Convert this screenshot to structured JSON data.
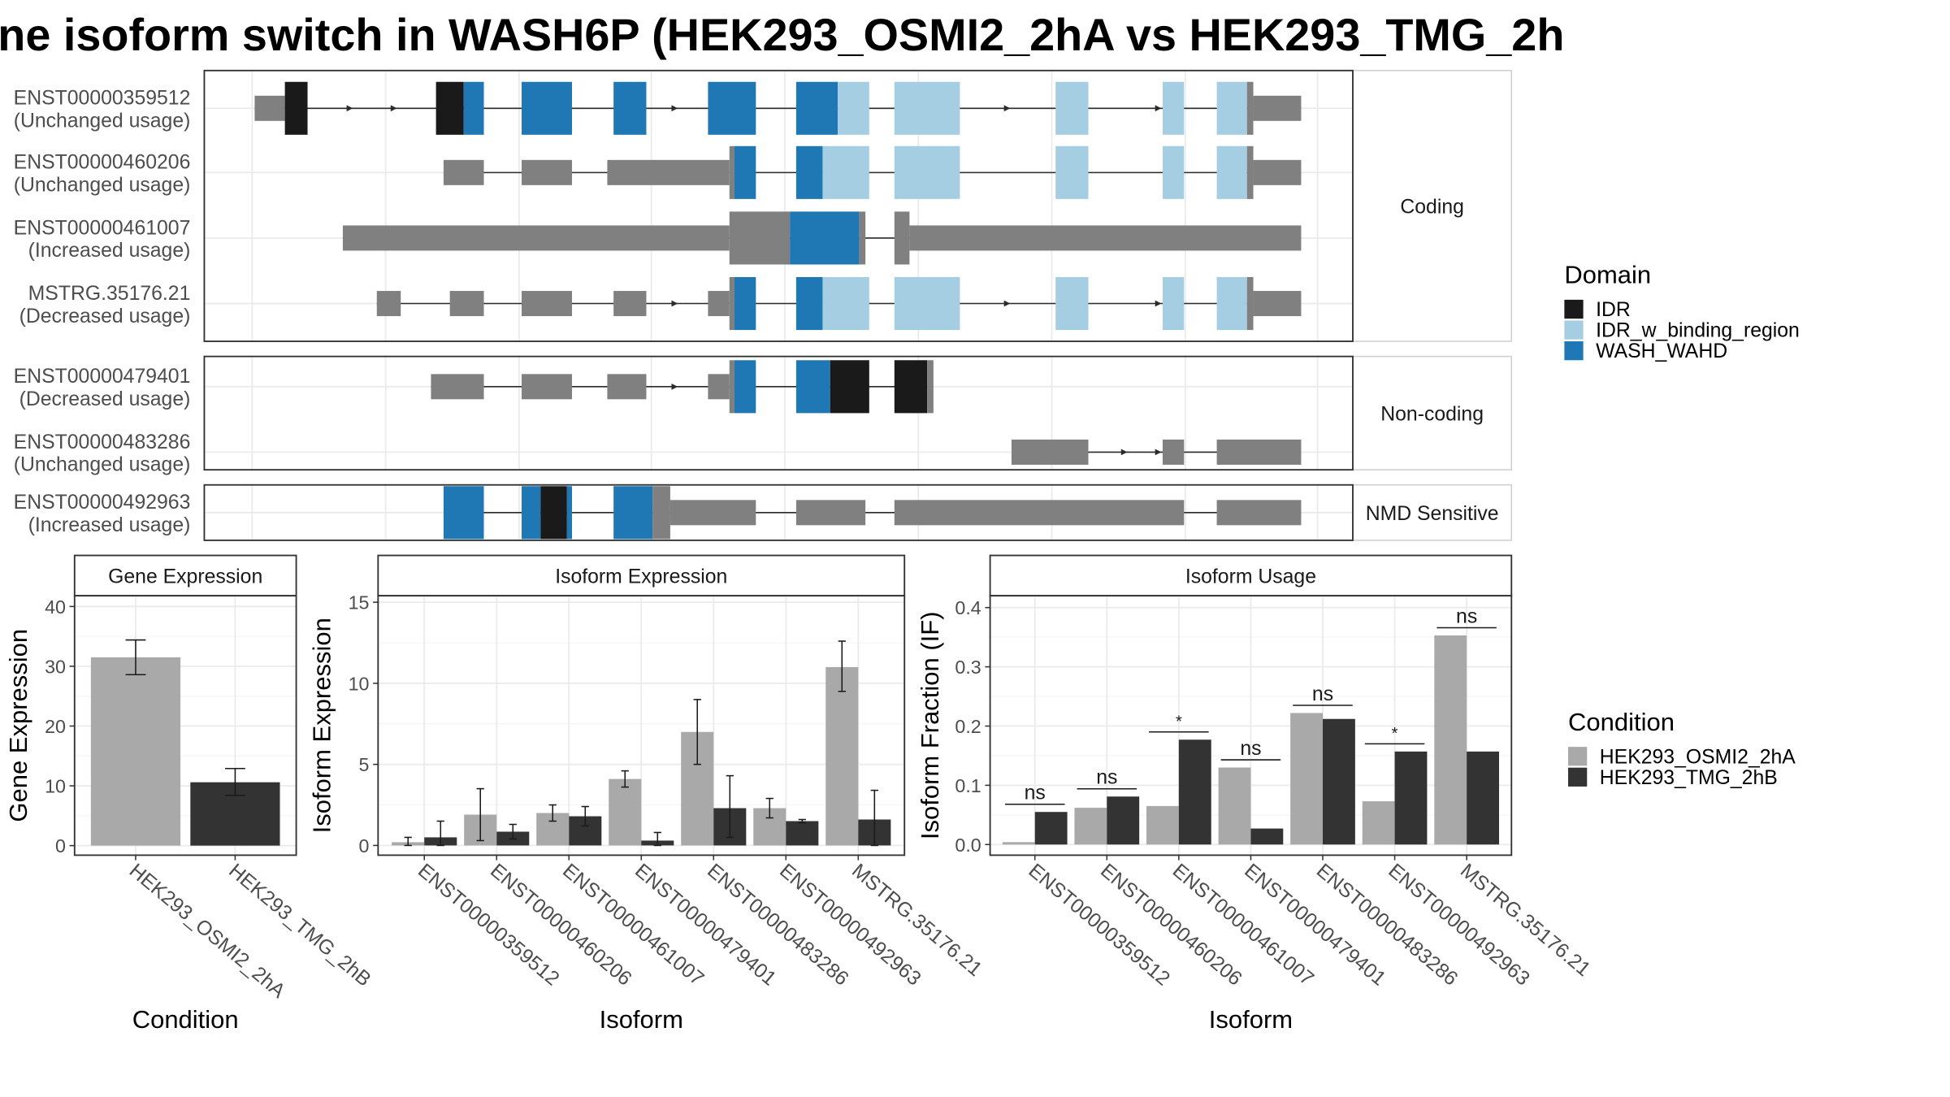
{
  "title": "ne isoform switch in WASH6P (HEK293_OSMI2_2hA vs HEK293_TMG_2h",
  "colors": {
    "IDR": "#1a1a1a",
    "IDR_w_binding_region": "#a6cee3",
    "WASH_WAHD": "#1f78b4",
    "intron": "#7f7f7f",
    "gene": "#808080",
    "cond1": "#a9a9a9",
    "cond2": "#333333"
  },
  "legend_domain": {
    "title": "Domain",
    "items": [
      {
        "label": "IDR",
        "color": "IDR"
      },
      {
        "label": "IDR_w_binding_region",
        "color": "IDR_w_binding_region"
      },
      {
        "label": "WASH_WAHD",
        "color": "WASH_WAHD"
      }
    ]
  },
  "legend_condition": {
    "title": "Condition",
    "items": [
      {
        "label": "HEK293_OSMI2_2hA",
        "color": "cond1"
      },
      {
        "label": "HEK293_TMG_2hB",
        "color": "cond2"
      }
    ]
  },
  "structure": {
    "panels": [
      {
        "label": "Coding",
        "transcripts": [
          {
            "id": "ENST00000359512",
            "usage": "(Unchanged usage)",
            "segments": [
              [
                202,
                226,
                "gene",
                "thin"
              ],
              [
                226,
                244,
                "IDR",
                "thick"
              ],
              [
                346,
                368,
                "IDR",
                "thick"
              ],
              [
                368,
                384,
                "WASH_WAHD",
                "thick"
              ],
              [
                414,
                454,
                "WASH_WAHD",
                "thick"
              ],
              [
                487,
                513,
                "WASH_WAHD",
                "thick"
              ],
              [
                562,
                600,
                "WASH_WAHD",
                "thick"
              ],
              [
                632,
                665,
                "WASH_WAHD",
                "thick"
              ],
              [
                665,
                690,
                "IDR_w_binding_region",
                "thick"
              ],
              [
                710,
                762,
                "IDR_w_binding_region",
                "thick"
              ],
              [
                838,
                864,
                "IDR_w_binding_region",
                "thick"
              ],
              [
                923,
                940,
                "IDR_w_binding_region",
                "thick"
              ],
              [
                966,
                990,
                "IDR_w_binding_region",
                "thick"
              ],
              [
                990,
                995,
                "gene",
                "thick"
              ],
              [
                995,
                1033,
                "gene",
                "thin"
              ]
            ],
            "arrows": [
              278,
              313,
              536,
              800,
              920
            ]
          },
          {
            "id": "ENST00000460206",
            "usage": "(Unchanged usage)",
            "segments": [
              [
                352,
                384,
                "gene",
                "thin"
              ],
              [
                414,
                454,
                "gene",
                "thin"
              ],
              [
                482,
                579,
                "gene",
                "thin"
              ],
              [
                579,
                583,
                "gene",
                "thick"
              ],
              [
                583,
                600,
                "WASH_WAHD",
                "thick"
              ],
              [
                632,
                653,
                "WASH_WAHD",
                "thick"
              ],
              [
                653,
                690,
                "IDR_w_binding_region",
                "thick"
              ],
              [
                710,
                762,
                "IDR_w_binding_region",
                "thick"
              ],
              [
                838,
                864,
                "IDR_w_binding_region",
                "thick"
              ],
              [
                923,
                940,
                "IDR_w_binding_region",
                "thick"
              ],
              [
                966,
                990,
                "IDR_w_binding_region",
                "thick"
              ],
              [
                990,
                995,
                "gene",
                "thick"
              ],
              [
                995,
                1033,
                "gene",
                "thin"
              ]
            ],
            "arrows": []
          },
          {
            "id": "ENST00000461007",
            "usage": "(Increased usage)",
            "segments": [
              [
                272,
                579,
                "gene",
                "thin"
              ],
              [
                579,
                627,
                "gene",
                "thick"
              ],
              [
                627,
                682,
                "WASH_WAHD",
                "thick"
              ],
              [
                682,
                687,
                "gene",
                "thick"
              ],
              [
                710,
                722,
                "gene",
                "thick"
              ],
              [
                722,
                1033,
                "gene",
                "thin"
              ]
            ],
            "arrows": []
          },
          {
            "id": "MSTRG.35176.21",
            "usage": "(Decreased usage)",
            "segments": [
              [
                299,
                318,
                "gene",
                "thin"
              ],
              [
                357,
                384,
                "gene",
                "thin"
              ],
              [
                414,
                454,
                "gene",
                "thin"
              ],
              [
                487,
                513,
                "gene",
                "thin"
              ],
              [
                562,
                579,
                "gene",
                "thin"
              ],
              [
                579,
                583,
                "gene",
                "thick"
              ],
              [
                583,
                600,
                "WASH_WAHD",
                "thick"
              ],
              [
                632,
                653,
                "WASH_WAHD",
                "thick"
              ],
              [
                653,
                690,
                "IDR_w_binding_region",
                "thick"
              ],
              [
                710,
                762,
                "IDR_w_binding_region",
                "thick"
              ],
              [
                838,
                864,
                "IDR_w_binding_region",
                "thick"
              ],
              [
                923,
                940,
                "IDR_w_binding_region",
                "thick"
              ],
              [
                966,
                990,
                "IDR_w_binding_region",
                "thick"
              ],
              [
                990,
                995,
                "gene",
                "thick"
              ],
              [
                995,
                1033,
                "gene",
                "thin"
              ]
            ],
            "arrows": [
              536,
              800,
              920
            ]
          }
        ]
      },
      {
        "label": "Non-coding",
        "transcripts": [
          {
            "id": "ENST00000479401",
            "usage": "(Decreased usage)",
            "segments": [
              [
                342,
                384,
                "gene",
                "thin"
              ],
              [
                414,
                454,
                "gene",
                "thin"
              ],
              [
                482,
                513,
                "gene",
                "thin"
              ],
              [
                562,
                579,
                "gene",
                "thin"
              ],
              [
                579,
                583,
                "gene",
                "thick"
              ],
              [
                583,
                600,
                "WASH_WAHD",
                "thick"
              ],
              [
                632,
                659,
                "WASH_WAHD",
                "thick"
              ],
              [
                659,
                690,
                "IDR",
                "thick"
              ],
              [
                710,
                736,
                "IDR",
                "thick"
              ],
              [
                736,
                741,
                "gene",
                "thick"
              ]
            ],
            "arrows": [
              536
            ]
          },
          {
            "id": "ENST00000483286",
            "usage": "(Unchanged usage)",
            "segments": [
              [
                803,
                864,
                "gene",
                "thin"
              ],
              [
                923,
                940,
                "gene",
                "thin"
              ],
              [
                966,
                1033,
                "gene",
                "thin"
              ]
            ],
            "arrows": [
              893,
              920
            ]
          }
        ]
      },
      {
        "label": "NMD Sensitive",
        "transcripts": [
          {
            "id": "ENST00000492963",
            "usage": "(Increased usage)",
            "segments": [
              [
                352,
                384,
                "WASH_WAHD",
                "thick"
              ],
              [
                414,
                429,
                "WASH_WAHD",
                "thick"
              ],
              [
                429,
                450,
                "IDR",
                "thick"
              ],
              [
                450,
                454,
                "WASH_WAHD",
                "thick"
              ],
              [
                487,
                518,
                "WASH_WAHD",
                "thick"
              ],
              [
                518,
                532,
                "gene",
                "thick"
              ],
              [
                532,
                600,
                "gene",
                "thin"
              ],
              [
                632,
                687,
                "gene",
                "thin"
              ],
              [
                710,
                940,
                "gene",
                "thin"
              ],
              [
                966,
                1033,
                "gene",
                "thin"
              ]
            ],
            "arrows": []
          }
        ]
      }
    ]
  },
  "chart_data": [
    {
      "type": "bar",
      "title": "Gene Expression",
      "xlabel": "Condition",
      "ylabel": "Gene Expression",
      "categories": [
        "HEK293_OSMI2_2hA",
        "HEK293_TMG_2hB"
      ],
      "values": [
        31.5,
        10.6
      ],
      "error": [
        [
          28.6,
          34.4
        ],
        [
          8.4,
          12.9
        ]
      ],
      "ylim": [
        -1.6,
        41.8
      ],
      "yticks": [
        0,
        10,
        20,
        30,
        40
      ]
    },
    {
      "type": "bar",
      "title": "Isoform Expression",
      "xlabel": "Isoform",
      "ylabel": "Isoform Expression",
      "categories": [
        "ENST00000359512",
        "ENST00000460206",
        "ENST00000461007",
        "ENST00000479401",
        "ENST00000483286",
        "ENST00000492963",
        "MSTRG.35176.21"
      ],
      "series": [
        {
          "name": "HEK293_OSMI2_2hA",
          "color": "cond1",
          "values": [
            0.2,
            1.9,
            2.0,
            4.1,
            7.0,
            2.3,
            11.0
          ],
          "error": [
            [
              0.0,
              0.5
            ],
            [
              0.3,
              3.5
            ],
            [
              1.5,
              2.5
            ],
            [
              3.6,
              4.6
            ],
            [
              5.0,
              9.0
            ],
            [
              1.7,
              2.9
            ],
            [
              9.5,
              12.6
            ]
          ]
        },
        {
          "name": "HEK293_TMG_2hB",
          "color": "cond2",
          "values": [
            0.5,
            0.85,
            1.8,
            0.3,
            2.3,
            1.5,
            1.6
          ],
          "error": [
            [
              0.0,
              1.5
            ],
            [
              0.4,
              1.3
            ],
            [
              1.2,
              2.4
            ],
            [
              0.0,
              0.8
            ],
            [
              0.5,
              4.3
            ],
            [
              1.4,
              1.6
            ],
            [
              0.0,
              3.4
            ]
          ]
        }
      ],
      "ylim": [
        -0.6,
        15.4
      ],
      "yticks": [
        0,
        5,
        10,
        15
      ]
    },
    {
      "type": "bar",
      "title": "Isoform Usage",
      "xlabel": "Isoform",
      "ylabel": "Isoform Fraction (IF)",
      "categories": [
        "ENST00000359512",
        "ENST00000460206",
        "ENST00000461007",
        "ENST00000479401",
        "ENST00000483286",
        "ENST00000492963",
        "MSTRG.35176.21"
      ],
      "series": [
        {
          "name": "HEK293_OSMI2_2hA",
          "color": "cond1",
          "values": [
            0.004,
            0.062,
            0.065,
            0.13,
            0.222,
            0.073,
            0.353
          ]
        },
        {
          "name": "HEK293_TMG_2hB",
          "color": "cond2",
          "values": [
            0.055,
            0.081,
            0.177,
            0.027,
            0.212,
            0.157,
            0.157
          ]
        }
      ],
      "significance": [
        "ns",
        "ns",
        "*",
        "ns",
        "ns",
        "*",
        "ns"
      ],
      "ylim": [
        -0.018,
        0.42
      ],
      "yticks": [
        0.0,
        0.1,
        0.2,
        0.3,
        0.4
      ],
      "ytick_labels": [
        "0.0",
        "0.1",
        "0.2",
        "0.3",
        "0.4"
      ]
    }
  ]
}
